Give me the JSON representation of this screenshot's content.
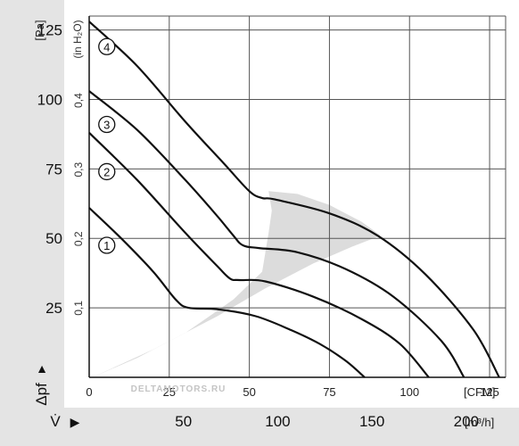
{
  "chart_data": {
    "type": "line",
    "title": "",
    "xlabel": "",
    "ylabel": "",
    "x_unit_cfm": "[CFM]",
    "x_unit_m3h": "[m³/h]",
    "y_unit_pa": "[Pa]",
    "y_unit_inh2o": "(in H₂O)",
    "y_symbol": "Δpf",
    "x_symbol": "V̇",
    "xlim": [
      0,
      130
    ],
    "ylim": [
      0,
      130
    ],
    "grid": true,
    "x_ticks_cfm": [
      "0",
      "25",
      "50",
      "75",
      "100",
      "125"
    ],
    "x_ticks_m3h": [
      "50",
      "100",
      "150",
      "200"
    ],
    "y_ticks_pa": [
      "25",
      "50",
      "75",
      "100",
      "125"
    ],
    "y_ticks_inh2o": [
      "0,1",
      "0,2",
      "0,3",
      "0,4"
    ],
    "watermark": "DELTAMOTORS.RU",
    "series": [
      {
        "name": "1",
        "points": [
          [
            0,
            61
          ],
          [
            10,
            50
          ],
          [
            20,
            38
          ],
          [
            27,
            28
          ],
          [
            31,
            25
          ],
          [
            40,
            24.5
          ],
          [
            52,
            22
          ],
          [
            63,
            17
          ],
          [
            72,
            12
          ],
          [
            80,
            6
          ],
          [
            86,
            0
          ]
        ]
      },
      {
        "name": "2",
        "points": [
          [
            0,
            88
          ],
          [
            15,
            71
          ],
          [
            30,
            52
          ],
          [
            40,
            40
          ],
          [
            44,
            35.5
          ],
          [
            47,
            35
          ],
          [
            55,
            34.5
          ],
          [
            70,
            29
          ],
          [
            85,
            21
          ],
          [
            97,
            12
          ],
          [
            106,
            0
          ]
        ]
      },
      {
        "name": "3",
        "points": [
          [
            0,
            103
          ],
          [
            15,
            89
          ],
          [
            30,
            71
          ],
          [
            40,
            58
          ],
          [
            45,
            51
          ],
          [
            48,
            47.5
          ],
          [
            53,
            46.5
          ],
          [
            65,
            45
          ],
          [
            80,
            39
          ],
          [
            95,
            29
          ],
          [
            110,
            13
          ],
          [
            117,
            0
          ]
        ]
      },
      {
        "name": "4",
        "points": [
          [
            0,
            128
          ],
          [
            15,
            112
          ],
          [
            30,
            92
          ],
          [
            42,
            77
          ],
          [
            50,
            67
          ],
          [
            54,
            64.5
          ],
          [
            58,
            64
          ],
          [
            75,
            59
          ],
          [
            90,
            51
          ],
          [
            105,
            37
          ],
          [
            120,
            17
          ],
          [
            128,
            0
          ]
        ]
      }
    ],
    "operating_band": {
      "lower": [
        [
          1,
          0
        ],
        [
          20,
          10
        ],
        [
          40,
          22
        ],
        [
          55,
          32
        ],
        [
          70,
          41
        ],
        [
          82,
          47
        ],
        [
          91,
          51
        ]
      ],
      "upper": [
        [
          1,
          0
        ],
        [
          15,
          7
        ],
        [
          30,
          16
        ],
        [
          45,
          28
        ],
        [
          54,
          38
        ],
        [
          56,
          52
        ],
        [
          57,
          60
        ],
        [
          56,
          67
        ],
        [
          65,
          66
        ],
        [
          75,
          62
        ],
        [
          85,
          56
        ],
        [
          91,
          51
        ]
      ]
    }
  }
}
